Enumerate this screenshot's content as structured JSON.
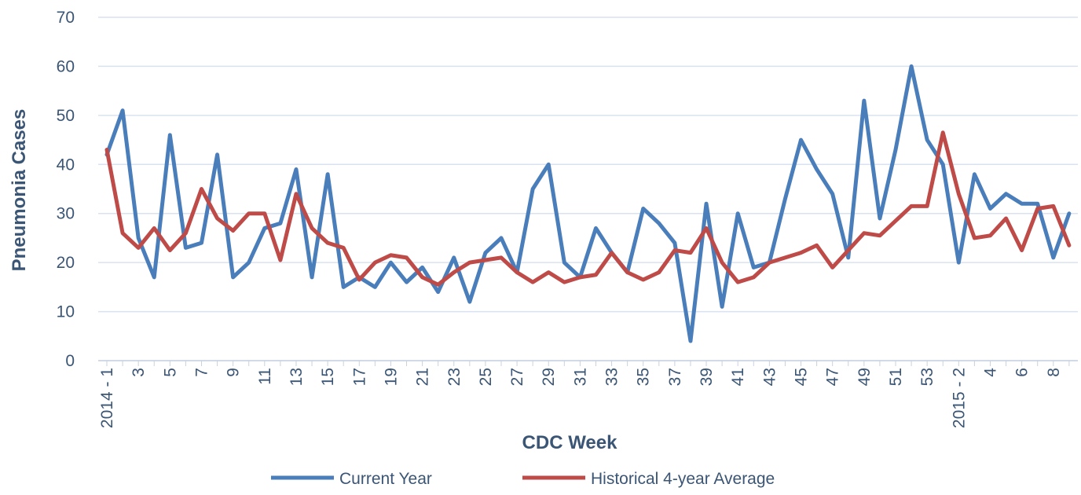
{
  "chart_data": {
    "type": "line",
    "y_label": "Pneumonia Cases",
    "x_label": "CDC Week",
    "categories": [
      "2014 - 1",
      null,
      "3",
      null,
      "5",
      null,
      "7",
      null,
      "9",
      null,
      "11",
      null,
      "13",
      null,
      "15",
      null,
      "17",
      null,
      "19",
      null,
      "21",
      null,
      "23",
      null,
      "25",
      null,
      "27",
      null,
      "29",
      null,
      "31",
      null,
      "33",
      null,
      "35",
      null,
      "37",
      null,
      "39",
      null,
      "41",
      null,
      "43",
      null,
      "45",
      null,
      "47",
      null,
      "49",
      null,
      "51",
      null,
      "53",
      null,
      "2015 - 2",
      null,
      "4",
      null,
      "6",
      null,
      "8",
      null
    ],
    "series": [
      {
        "name": "Current Year",
        "color": "#4a7ebb",
        "values": [
          42,
          51,
          25,
          17,
          46,
          23,
          24,
          42,
          17,
          20,
          27,
          28,
          39,
          17,
          38,
          15,
          17,
          15,
          20,
          16,
          19,
          14,
          21,
          12,
          22,
          25,
          18,
          35,
          40,
          20,
          17,
          27,
          22,
          18,
          31,
          28,
          24,
          4,
          32,
          11,
          30,
          19,
          20,
          33,
          45,
          39,
          34,
          21,
          53,
          29,
          43,
          60,
          45,
          40,
          20,
          38,
          31,
          34,
          32,
          32,
          21,
          30
        ]
      },
      {
        "name": "Historical 4-year Average",
        "color": "#be4b48",
        "values": [
          43,
          26,
          23,
          27,
          22.5,
          26,
          35,
          29,
          26.5,
          30,
          30,
          20.5,
          34,
          27,
          24,
          23,
          16.5,
          20,
          21.5,
          21,
          17,
          15.5,
          18,
          20,
          20.5,
          21,
          18,
          16,
          18,
          16,
          17,
          17.5,
          22,
          18,
          16.5,
          18,
          22.5,
          22,
          27,
          20,
          16,
          17,
          20,
          21,
          22,
          23.5,
          19,
          22.5,
          26,
          25.5,
          28.5,
          31.5,
          31.5,
          46.5,
          34,
          25,
          25.5,
          29,
          22.5,
          31,
          31.5,
          23.5
        ]
      }
    ],
    "ylim": [
      0,
      70
    ],
    "yticks": [
      0,
      10,
      20,
      30,
      40,
      50,
      60,
      70
    ],
    "grid": true,
    "legend": "bottom"
  }
}
